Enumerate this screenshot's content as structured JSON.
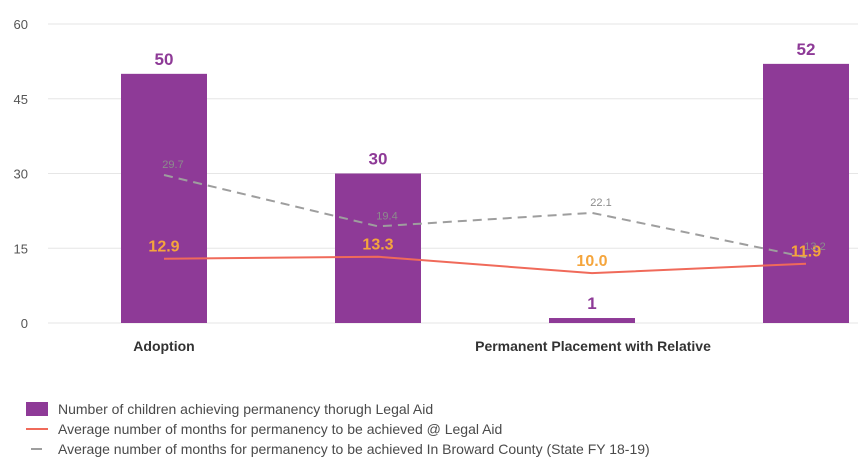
{
  "chart_data": {
    "type": "bar",
    "categories": [
      "Adoption",
      "",
      "",
      "Permanent Placement with Relative"
    ],
    "ylim": [
      0,
      60
    ],
    "yticks": [
      "0",
      "15",
      "30",
      "45",
      "60"
    ],
    "grid": true,
    "legend_placement": "bottom",
    "series": [
      {
        "name": "Number of children achieving permanency thorugh Legal Aid",
        "kind": "bar",
        "color": "#8e3a97",
        "values": [
          50,
          30,
          1,
          52
        ],
        "labels": [
          "50",
          "30",
          "1",
          "52"
        ]
      },
      {
        "name": "Average number of months for permanency to be achieved @ Legal Aid",
        "kind": "line",
        "color": "#f06a5a",
        "label_color": "#f5a53c",
        "values": [
          12.9,
          13.3,
          10.0,
          11.9
        ],
        "labels": [
          "12.9",
          "13.3",
          "10.0",
          "11.9"
        ]
      },
      {
        "name": "Average number of months for permanency to be achieved In Broward County (State FY 18-19)",
        "kind": "dashed-line",
        "color": "#9e9e9e",
        "values": [
          29.7,
          19.4,
          22.1,
          13.2
        ],
        "labels": [
          "29.7",
          "19.4",
          "22.1",
          "13.2"
        ]
      }
    ]
  }
}
